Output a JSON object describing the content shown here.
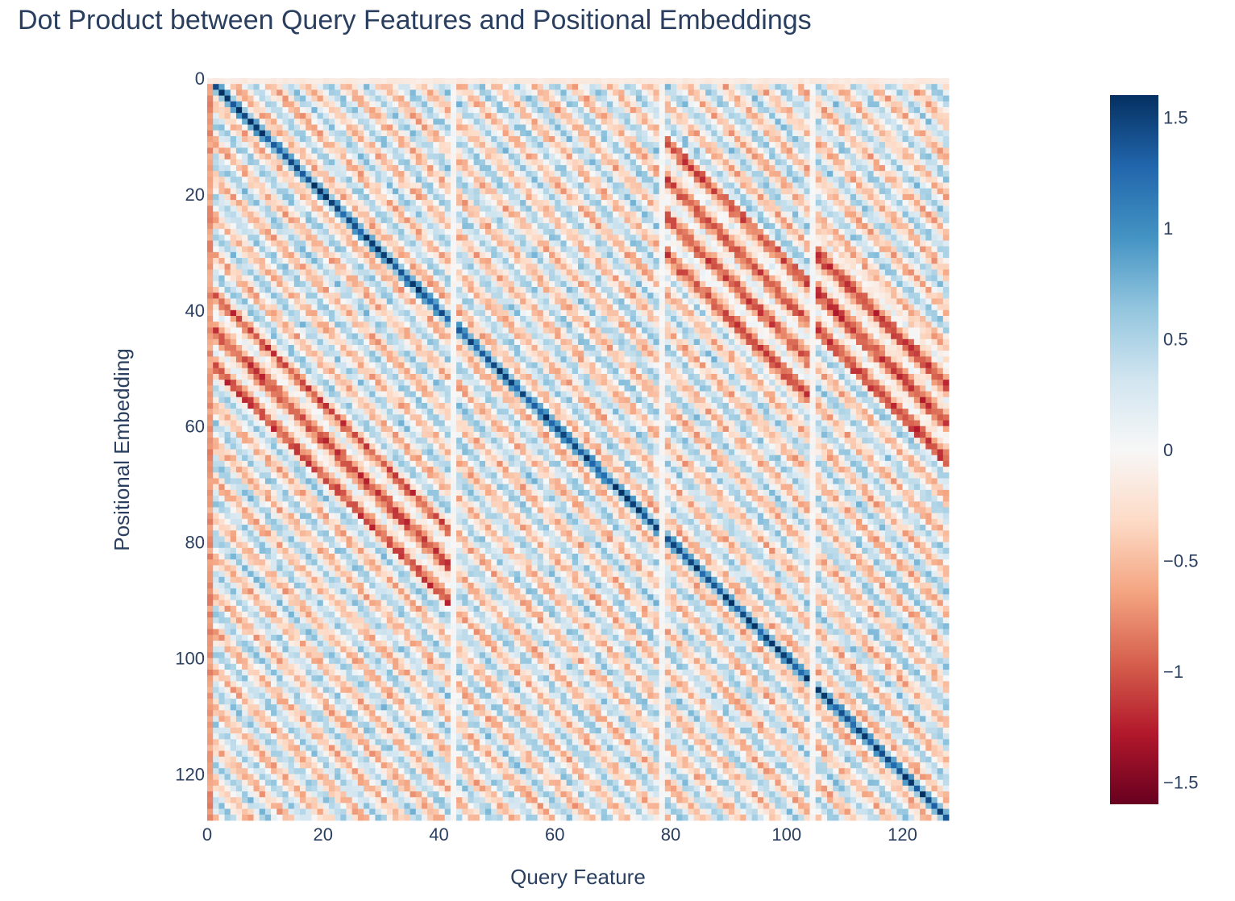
{
  "chart_data": {
    "type": "heatmap",
    "title": "Dot Product between Query Features and Positional Embeddings",
    "xlabel": "Query Feature",
    "ylabel": "Positional Embedding",
    "x_range": [
      0,
      127
    ],
    "y_range": [
      0,
      127
    ],
    "y_reversed": true,
    "x_ticks": [
      0,
      20,
      40,
      60,
      80,
      100,
      120
    ],
    "y_ticks": [
      0,
      20,
      40,
      60,
      80,
      100,
      120
    ],
    "colorscale": "RdBu",
    "colorscale_stops": [
      [
        0.0,
        "#67001f"
      ],
      [
        0.1,
        "#b2182b"
      ],
      [
        0.2,
        "#d6604d"
      ],
      [
        0.3,
        "#f4a582"
      ],
      [
        0.4,
        "#fddbc7"
      ],
      [
        0.5,
        "#f7f7f7"
      ],
      [
        0.6,
        "#d1e5f0"
      ],
      [
        0.7,
        "#92c5de"
      ],
      [
        0.8,
        "#4393c3"
      ],
      [
        0.9,
        "#2166ac"
      ],
      [
        1.0,
        "#053061"
      ]
    ],
    "zrange": [
      -1.6,
      1.6
    ],
    "colorbar_ticks": [
      1.5,
      1,
      0.5,
      0,
      -0.5,
      -1,
      -1.5
    ],
    "colorbar_tick_labels": [
      "1.5",
      "1",
      "0.5",
      "0",
      "−0.5",
      "−1",
      "−1.5"
    ],
    "column_blocks": [
      {
        "x_start": 0,
        "x_end": 42,
        "diagonal_offset": 0
      },
      {
        "x_start": 43,
        "x_end": 78,
        "diagonal_offset": 43
      },
      {
        "x_start": 79,
        "x_end": 104,
        "diagonal_offset": 79
      },
      {
        "x_start": 105,
        "x_end": 127,
        "diagonal_offset": 105
      }
    ],
    "separator_columns": [
      42,
      78,
      104
    ]
  }
}
